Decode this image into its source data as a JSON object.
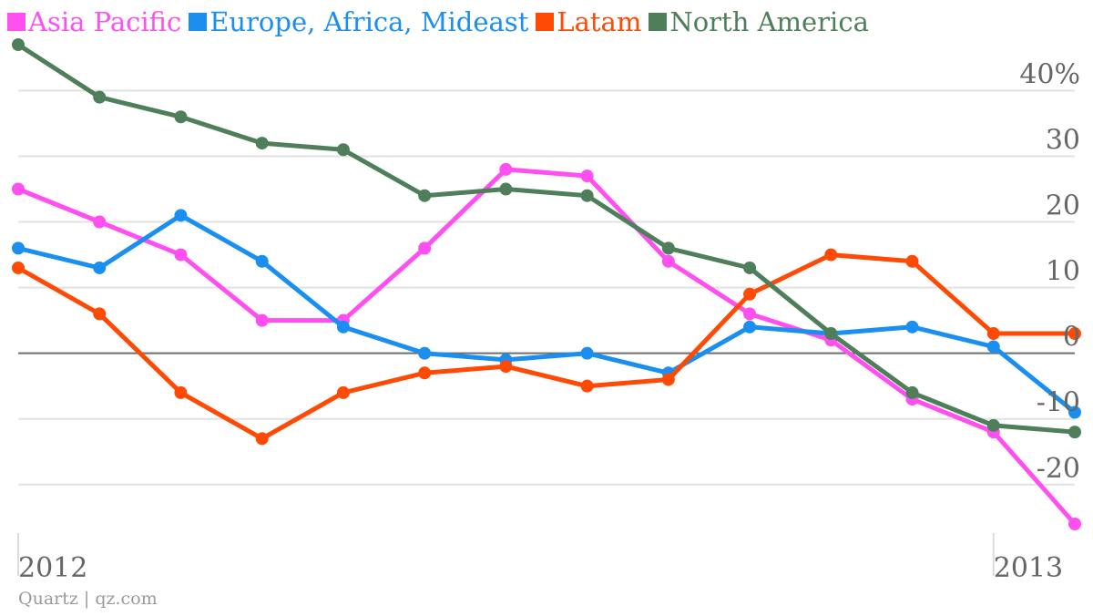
{
  "chart_data": {
    "type": "line",
    "x": [
      "2012-01",
      "2012-02",
      "2012-03",
      "2012-04",
      "2012-05",
      "2012-06",
      "2012-07",
      "2012-08",
      "2012-09",
      "2012-10",
      "2012-11",
      "2012-12",
      "2013-01",
      "2013-02"
    ],
    "x_tick_labels": [
      {
        "label": "2012",
        "at": "2012-01"
      },
      {
        "label": "2013",
        "at": "2013-01"
      }
    ],
    "series": [
      {
        "name": "Asia Pacific",
        "color": "#ff4ff0",
        "values": [
          25,
          20,
          15,
          5,
          5,
          16,
          28,
          27,
          14,
          6,
          2,
          -7,
          -12,
          -26
        ]
      },
      {
        "name": "Europe, Africa, Mideast",
        "color": "#1a8ff0",
        "values": [
          16,
          13,
          21,
          14,
          4,
          0,
          -1,
          0,
          -3,
          4,
          3,
          4,
          1,
          -9
        ]
      },
      {
        "name": "Latam",
        "color": "#ff4a05",
        "values": [
          13,
          6,
          -6,
          -13,
          -6,
          -3,
          -2,
          -5,
          -4,
          9,
          15,
          14,
          3,
          3
        ]
      },
      {
        "name": "North America",
        "color": "#4f7f5a",
        "values": [
          47,
          39,
          36,
          32,
          31,
          24,
          25,
          24,
          16,
          13,
          3,
          -6,
          -11,
          -12
        ]
      }
    ],
    "y_ticks": [
      {
        "value": 40,
        "label": "40%"
      },
      {
        "value": 30,
        "label": "30"
      },
      {
        "value": 20,
        "label": "20"
      },
      {
        "value": 10,
        "label": "10"
      },
      {
        "value": 0,
        "label": "0"
      },
      {
        "value": -10,
        "label": "-10"
      },
      {
        "value": -20,
        "label": "-20"
      }
    ],
    "ylim": [
      -26,
      47
    ],
    "grid": true,
    "legend_position": "top-left",
    "source": "Quartz | qz.com"
  }
}
